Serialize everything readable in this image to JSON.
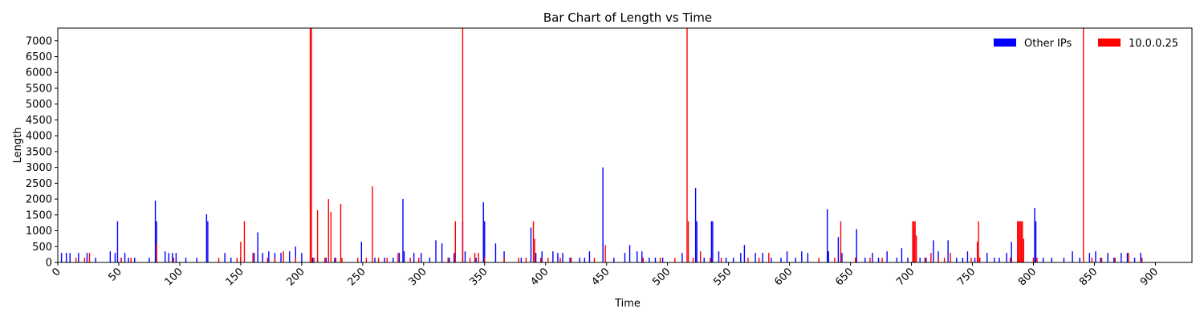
{
  "chart_data": {
    "type": "bar",
    "title": "Bar Chart of Length vs Time",
    "xlabel": "Time",
    "ylabel": "Length",
    "xlim": [
      0,
      930
    ],
    "ylim": [
      0,
      7400
    ],
    "x_ticks": [
      0,
      50,
      100,
      150,
      200,
      250,
      300,
      350,
      400,
      450,
      500,
      550,
      600,
      650,
      700,
      750,
      800,
      850,
      900
    ],
    "y_ticks": [
      0,
      500,
      1000,
      1500,
      2000,
      2500,
      3000,
      3500,
      4000,
      4500,
      5000,
      5500,
      6000,
      6500,
      7000
    ],
    "legend_position": "top-right",
    "grid": false,
    "series": [
      {
        "name": "Other IPs",
        "color": "#0000ff",
        "points": [
          [
            3,
            300
          ],
          [
            7,
            300
          ],
          [
            10,
            300
          ],
          [
            17,
            300
          ],
          [
            24,
            300
          ],
          [
            31,
            150
          ],
          [
            43,
            350
          ],
          [
            47,
            300
          ],
          [
            49,
            1300
          ],
          [
            52,
            150
          ],
          [
            55,
            300
          ],
          [
            58,
            150
          ],
          [
            63,
            150
          ],
          [
            75,
            150
          ],
          [
            80,
            1950
          ],
          [
            81,
            1300
          ],
          [
            88,
            350
          ],
          [
            91,
            300
          ],
          [
            94,
            300
          ],
          [
            97,
            300
          ],
          [
            105,
            150
          ],
          [
            114,
            150
          ],
          [
            122,
            1520
          ],
          [
            123,
            1300
          ],
          [
            137,
            300
          ],
          [
            142,
            150
          ],
          [
            150,
            150
          ],
          [
            161,
            300
          ],
          [
            164,
            950
          ],
          [
            168,
            300
          ],
          [
            173,
            350
          ],
          [
            178,
            300
          ],
          [
            183,
            300
          ],
          [
            190,
            350
          ],
          [
            195,
            500
          ],
          [
            200,
            300
          ],
          [
            209,
            150
          ],
          [
            213,
            150
          ],
          [
            220,
            150
          ],
          [
            227,
            150
          ],
          [
            249,
            650
          ],
          [
            260,
            150
          ],
          [
            268,
            150
          ],
          [
            275,
            150
          ],
          [
            280,
            300
          ],
          [
            283,
            2000
          ],
          [
            284,
            350
          ],
          [
            292,
            300
          ],
          [
            298,
            300
          ],
          [
            305,
            150
          ],
          [
            310,
            700
          ],
          [
            315,
            600
          ],
          [
            321,
            150
          ],
          [
            325,
            300
          ],
          [
            332,
            1300
          ],
          [
            334,
            350
          ],
          [
            343,
            150
          ],
          [
            349,
            1900
          ],
          [
            350,
            1300
          ],
          [
            359,
            600
          ],
          [
            366,
            350
          ],
          [
            380,
            150
          ],
          [
            388,
            1100
          ],
          [
            392,
            300
          ],
          [
            397,
            350
          ],
          [
            406,
            350
          ],
          [
            410,
            300
          ],
          [
            414,
            300
          ],
          [
            420,
            150
          ],
          [
            428,
            150
          ],
          [
            432,
            150
          ],
          [
            436,
            350
          ],
          [
            447,
            3000
          ],
          [
            456,
            150
          ],
          [
            465,
            300
          ],
          [
            469,
            550
          ],
          [
            475,
            350
          ],
          [
            479,
            350
          ],
          [
            485,
            150
          ],
          [
            490,
            150
          ],
          [
            496,
            150
          ],
          [
            512,
            300
          ],
          [
            523,
            2350
          ],
          [
            524,
            1300
          ],
          [
            530,
            150
          ],
          [
            536,
            1300
          ],
          [
            537,
            1300
          ],
          [
            542,
            350
          ],
          [
            548,
            150
          ],
          [
            554,
            150
          ],
          [
            560,
            300
          ],
          [
            563,
            550
          ],
          [
            572,
            300
          ],
          [
            578,
            300
          ],
          [
            585,
            150
          ],
          [
            593,
            150
          ],
          [
            598,
            350
          ],
          [
            605,
            150
          ],
          [
            610,
            350
          ],
          [
            615,
            300
          ],
          [
            631,
            1680
          ],
          [
            632,
            350
          ],
          [
            640,
            800
          ],
          [
            643,
            300
          ],
          [
            655,
            1050
          ],
          [
            662,
            150
          ],
          [
            668,
            300
          ],
          [
            673,
            150
          ],
          [
            680,
            350
          ],
          [
            688,
            150
          ],
          [
            692,
            450
          ],
          [
            697,
            150
          ],
          [
            702,
            1100
          ],
          [
            707,
            150
          ],
          [
            712,
            150
          ],
          [
            718,
            700
          ],
          [
            722,
            350
          ],
          [
            730,
            700
          ],
          [
            737,
            150
          ],
          [
            742,
            150
          ],
          [
            746,
            350
          ],
          [
            752,
            150
          ],
          [
            756,
            150
          ],
          [
            762,
            300
          ],
          [
            768,
            150
          ],
          [
            772,
            150
          ],
          [
            778,
            300
          ],
          [
            782,
            650
          ],
          [
            791,
            150
          ],
          [
            801,
            1720
          ],
          [
            802,
            1300
          ],
          [
            808,
            150
          ],
          [
            815,
            150
          ],
          [
            825,
            150
          ],
          [
            832,
            350
          ],
          [
            838,
            150
          ],
          [
            846,
            300
          ],
          [
            851,
            350
          ],
          [
            855,
            150
          ],
          [
            861,
            300
          ],
          [
            866,
            150
          ],
          [
            872,
            300
          ],
          [
            877,
            300
          ],
          [
            883,
            150
          ],
          [
            888,
            300
          ]
        ]
      },
      {
        "name": "10.0.0.25",
        "color": "#ff0000",
        "points": [
          [
            15,
            150
          ],
          [
            22,
            150
          ],
          [
            26,
            300
          ],
          [
            52,
            150
          ],
          [
            60,
            150
          ],
          [
            81,
            600
          ],
          [
            95,
            150
          ],
          [
            132,
            150
          ],
          [
            147,
            150
          ],
          [
            150,
            650
          ],
          [
            153,
            1300
          ],
          [
            160,
            300
          ],
          [
            172,
            150
          ],
          [
            178,
            150
          ],
          [
            185,
            350
          ],
          [
            195,
            150
          ],
          [
            207,
            7400
          ],
          [
            208,
            7400
          ],
          [
            210,
            150
          ],
          [
            213,
            1650
          ],
          [
            219,
            150
          ],
          [
            222,
            2000
          ],
          [
            224,
            1600
          ],
          [
            228,
            150
          ],
          [
            232,
            1850
          ],
          [
            233,
            150
          ],
          [
            246,
            150
          ],
          [
            253,
            150
          ],
          [
            258,
            2400
          ],
          [
            263,
            150
          ],
          [
            270,
            150
          ],
          [
            279,
            300
          ],
          [
            289,
            150
          ],
          [
            296,
            150
          ],
          [
            320,
            150
          ],
          [
            326,
            1300
          ],
          [
            332,
            7400
          ],
          [
            338,
            150
          ],
          [
            342,
            300
          ],
          [
            345,
            300
          ],
          [
            350,
            150
          ],
          [
            366,
            150
          ],
          [
            378,
            150
          ],
          [
            384,
            150
          ],
          [
            390,
            1300
          ],
          [
            391,
            750
          ],
          [
            396,
            150
          ],
          [
            402,
            150
          ],
          [
            412,
            150
          ],
          [
            421,
            150
          ],
          [
            440,
            150
          ],
          [
            449,
            550
          ],
          [
            480,
            150
          ],
          [
            494,
            150
          ],
          [
            506,
            150
          ],
          [
            516,
            7400
          ],
          [
            517,
            1300
          ],
          [
            521,
            150
          ],
          [
            527,
            350
          ],
          [
            535,
            150
          ],
          [
            544,
            150
          ],
          [
            566,
            150
          ],
          [
            575,
            150
          ],
          [
            583,
            300
          ],
          [
            624,
            150
          ],
          [
            637,
            150
          ],
          [
            642,
            1300
          ],
          [
            654,
            150
          ],
          [
            666,
            150
          ],
          [
            676,
            150
          ],
          [
            701,
            1300
          ],
          [
            702,
            1300
          ],
          [
            703,
            1300
          ],
          [
            704,
            850
          ],
          [
            711,
            150
          ],
          [
            716,
            300
          ],
          [
            722,
            150
          ],
          [
            727,
            150
          ],
          [
            732,
            300
          ],
          [
            749,
            150
          ],
          [
            754,
            650
          ],
          [
            755,
            1300
          ],
          [
            756,
            150
          ],
          [
            781,
            150
          ],
          [
            787,
            1300
          ],
          [
            788,
            1300
          ],
          [
            789,
            1300
          ],
          [
            790,
            1300
          ],
          [
            791,
            1300
          ],
          [
            792,
            750
          ],
          [
            800,
            150
          ],
          [
            803,
            150
          ],
          [
            841,
            7400
          ],
          [
            848,
            150
          ],
          [
            856,
            150
          ],
          [
            867,
            150
          ],
          [
            878,
            300
          ],
          [
            889,
            150
          ]
        ]
      }
    ]
  }
}
